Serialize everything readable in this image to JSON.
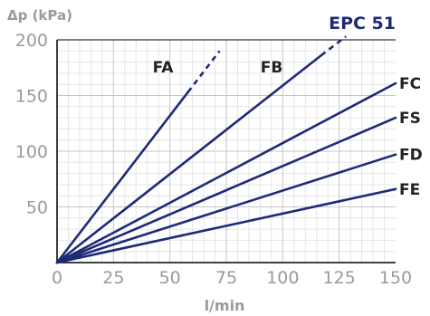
{
  "chart_data": {
    "type": "line",
    "title": "EPC 51",
    "ylabel": "Δp (kPa)",
    "xlabel": "l/min",
    "xlim": [
      0,
      150
    ],
    "ylim": [
      0,
      200
    ],
    "x_ticks": [
      "0",
      "25",
      "50",
      "75",
      "100",
      "125",
      "150"
    ],
    "y_ticks": [
      "50",
      "100",
      "150",
      "200"
    ],
    "grid": true,
    "series": [
      {
        "name": "FA",
        "points": [
          [
            0,
            0
          ],
          [
            58,
            153
          ]
        ],
        "dashed_points": [
          [
            58,
            153
          ],
          [
            72,
            190
          ]
        ]
      },
      {
        "name": "FB",
        "points": [
          [
            0,
            0
          ],
          [
            117,
            186
          ]
        ],
        "dashed_points": [
          [
            117,
            186
          ],
          [
            128,
            203
          ]
        ]
      },
      {
        "name": "FC",
        "points": [
          [
            0,
            0
          ],
          [
            150,
            161
          ]
        ],
        "dashed_points": []
      },
      {
        "name": "FS",
        "points": [
          [
            0,
            0
          ],
          [
            150,
            130
          ]
        ],
        "dashed_points": []
      },
      {
        "name": "FD",
        "points": [
          [
            0,
            0
          ],
          [
            150,
            97
          ]
        ],
        "dashed_points": []
      },
      {
        "name": "FE",
        "points": [
          [
            0,
            0
          ],
          [
            150,
            66
          ]
        ],
        "dashed_points": []
      }
    ],
    "colors": {
      "line": "#1e2a78",
      "grid_major": "#c6c6c6",
      "grid_minor": "#e6e6e6",
      "axis": "#000000"
    }
  }
}
